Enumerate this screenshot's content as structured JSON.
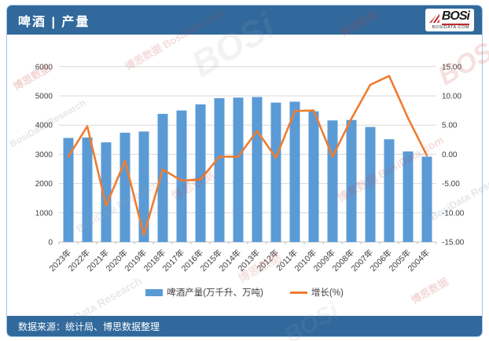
{
  "header": {
    "title": "啤酒 | 产量",
    "logo": {
      "brand": "BOSi",
      "domain": "BOSIDATA.COM"
    }
  },
  "footer": {
    "source": "数据来源：统计局、博思数据整理"
  },
  "watermarks": {
    "texts": [
      "博思数据",
      "BosiData Research",
      "BOSi",
      "博思数据 BosiData.com"
    ]
  },
  "chart_data": {
    "type": "bar",
    "title": "啤酒产量",
    "categories": [
      "2023年",
      "2022年",
      "2021年",
      "2020年",
      "2019年",
      "2018年",
      "2017年",
      "2016年",
      "2015年",
      "2014年",
      "2013年",
      "2012年",
      "2011年",
      "2010年",
      "2009年",
      "2008年",
      "2007年",
      "2006年",
      "2005年",
      "2004年"
    ],
    "series": [
      {
        "name": "啤酒产量(万千升、万吨)",
        "type": "bar",
        "axis": "left",
        "color": "#5B9BD5",
        "values": [
          3560,
          3575,
          3410,
          3740,
          3780,
          4385,
          4500,
          4710,
          4920,
          4940,
          4960,
          4770,
          4800,
          4470,
          4160,
          4175,
          3935,
          3515,
          3100,
          2920
        ]
      },
      {
        "name": "增长(%)",
        "type": "line",
        "axis": "right",
        "color": "#ED7D31",
        "values": [
          -0.4,
          4.8,
          -8.8,
          -1.1,
          -13.8,
          -2.6,
          -4.5,
          -4.3,
          -0.4,
          -0.4,
          4.0,
          -0.6,
          7.4,
          7.5,
          -0.4,
          6.1,
          11.9,
          13.4,
          6.2,
          -0.2
        ]
      }
    ],
    "left_axis": {
      "min": 0,
      "max": 6000,
      "step": 1000,
      "labels": [
        "0",
        "1000",
        "2000",
        "3000",
        "4000",
        "5000",
        "6000"
      ]
    },
    "right_axis": {
      "min": -15,
      "max": 15,
      "step": 5,
      "labels": [
        "-15.00",
        "-10.00",
        "-5.00",
        "0.00",
        "5.00",
        "10.00",
        "15.00"
      ]
    },
    "grid": true,
    "legend_position": "bottom",
    "grid_color": "#D9D9D9",
    "axis_line_color": "#BFBFBF",
    "label_color": "#404040"
  }
}
